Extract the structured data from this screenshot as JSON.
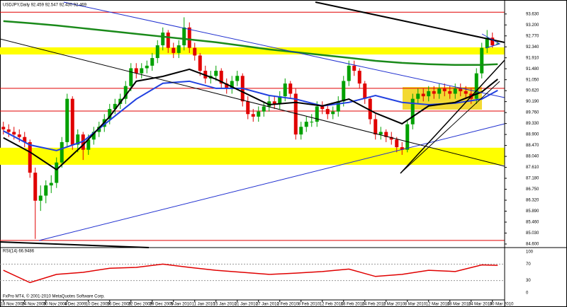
{
  "chart_data": {
    "type": "candlestick",
    "title": "USDJPY,Daily 92.459 92.547 92.430 92.469",
    "footer": "FxPro MT4, © 2001-2010 MetaQuotes Software Corp.",
    "bull_color": "#00a000",
    "bear_color": "#e00000",
    "ylim": [
      84.46,
      94.04
    ],
    "yticks": [
      {
        "value": 84.6,
        "label": "84.600"
      },
      {
        "value": 85.03,
        "label": "85.030"
      },
      {
        "value": 85.46,
        "label": "85.460"
      },
      {
        "value": 85.89,
        "label": "85.890"
      },
      {
        "value": 86.32,
        "label": "86.320"
      },
      {
        "value": 86.75,
        "label": "86.750"
      },
      {
        "value": 87.18,
        "label": "87.180"
      },
      {
        "value": 87.61,
        "label": "87.610"
      },
      {
        "value": 88.04,
        "label": "88.040"
      },
      {
        "value": 88.47,
        "label": "88.470"
      },
      {
        "value": 88.9,
        "label": "88.900"
      },
      {
        "value": 89.33,
        "label": "89.330"
      },
      {
        "value": 89.76,
        "label": "89.760"
      },
      {
        "value": 90.19,
        "label": "90.190"
      },
      {
        "value": 90.62,
        "label": "90.620"
      },
      {
        "value": 91.05,
        "label": "91.050"
      },
      {
        "value": 91.48,
        "label": "91.480"
      },
      {
        "value": 91.91,
        "label": "91.910"
      },
      {
        "value": 92.34,
        "label": "92.340"
      },
      {
        "value": 92.77,
        "label": "92.770"
      },
      {
        "value": 93.2,
        "label": "93.200"
      },
      {
        "value": 93.63,
        "label": "93.630"
      }
    ],
    "x_labels": [
      "18 Nov 2009",
      "24 Nov 2009",
      "30 Nov 2009",
      "4 Dec 2009",
      "10 Dec 2009",
      "16 Dec 2009",
      "22 Dec 2009",
      "29 Dec 2009",
      "5 Jan 2010",
      "11 Jan 2010",
      "15 Jan 2010",
      "21 Jan 2010",
      "27 Jan 2010",
      "2 Feb 2010",
      "8 Feb 2010",
      "12 Feb 2010",
      "18 Feb 2010",
      "24 Feb 2010",
      "2 Mar 2010",
      "8 Mar 2010",
      "12 Mar 2010",
      "18 Mar 2010",
      "24 Mar 2010",
      "30 Mar 2010"
    ],
    "ohlc": [
      [
        89.2,
        89.4,
        88.9,
        89.1
      ],
      [
        89.1,
        89.3,
        88.8,
        89.0
      ],
      [
        89.0,
        89.2,
        88.7,
        88.9
      ],
      [
        88.9,
        89.1,
        88.6,
        88.8
      ],
      [
        88.8,
        89.0,
        88.4,
        88.6
      ],
      [
        88.6,
        88.7,
        87.2,
        87.4
      ],
      [
        87.4,
        87.6,
        84.8,
        86.3
      ],
      [
        86.3,
        86.9,
        85.9,
        86.5
      ],
      [
        86.5,
        87.1,
        86.2,
        86.9
      ],
      [
        86.9,
        87.3,
        86.6,
        87.0
      ],
      [
        87.0,
        88.0,
        86.8,
        87.8
      ],
      [
        87.8,
        88.8,
        87.6,
        88.6
      ],
      [
        88.6,
        90.5,
        88.4,
        90.3
      ],
      [
        90.3,
        90.4,
        88.3,
        88.5
      ],
      [
        88.5,
        89.1,
        88.2,
        88.9
      ],
      [
        88.9,
        89.0,
        87.9,
        88.3
      ],
      [
        88.3,
        88.9,
        88.1,
        88.7
      ],
      [
        88.7,
        89.2,
        88.5,
        89.0
      ],
      [
        89.0,
        89.4,
        88.8,
        89.2
      ],
      [
        89.2,
        89.7,
        89.0,
        89.5
      ],
      [
        89.5,
        90.1,
        89.3,
        89.9
      ],
      [
        89.9,
        90.3,
        89.7,
        90.1
      ],
      [
        90.1,
        90.5,
        89.9,
        90.3
      ],
      [
        90.3,
        91.0,
        90.1,
        90.8
      ],
      [
        90.8,
        91.7,
        90.6,
        91.5
      ],
      [
        91.5,
        91.7,
        91.1,
        91.3
      ],
      [
        91.3,
        91.7,
        91.1,
        91.5
      ],
      [
        91.5,
        91.8,
        91.3,
        91.6
      ],
      [
        91.6,
        92.1,
        91.4,
        91.9
      ],
      [
        91.9,
        92.6,
        91.7,
        92.4
      ],
      [
        92.4,
        93.1,
        92.2,
        92.9
      ],
      [
        92.9,
        93.0,
        92.1,
        92.3
      ],
      [
        92.3,
        92.5,
        91.9,
        92.1
      ],
      [
        92.1,
        92.6,
        91.9,
        92.4
      ],
      [
        92.4,
        93.5,
        92.2,
        93.1
      ],
      [
        93.1,
        93.3,
        92.1,
        92.3
      ],
      [
        92.3,
        92.5,
        91.8,
        92.0
      ],
      [
        92.0,
        92.1,
        91.2,
        91.4
      ],
      [
        91.4,
        91.6,
        90.9,
        91.1
      ],
      [
        91.1,
        91.4,
        90.9,
        91.2
      ],
      [
        91.2,
        91.6,
        91.0,
        91.4
      ],
      [
        91.4,
        91.5,
        90.7,
        90.9
      ],
      [
        90.9,
        91.1,
        90.5,
        90.7
      ],
      [
        90.7,
        91.2,
        90.5,
        91.0
      ],
      [
        91.0,
        91.4,
        90.8,
        91.2
      ],
      [
        91.2,
        91.3,
        90.0,
        90.2
      ],
      [
        90.2,
        90.4,
        89.5,
        89.7
      ],
      [
        89.7,
        89.9,
        89.4,
        89.6
      ],
      [
        89.6,
        90.0,
        89.4,
        89.8
      ],
      [
        89.8,
        90.2,
        89.6,
        90.0
      ],
      [
        90.0,
        90.4,
        89.8,
        90.2
      ],
      [
        90.2,
        90.4,
        89.9,
        90.1
      ],
      [
        90.1,
        90.6,
        89.9,
        90.4
      ],
      [
        90.4,
        91.1,
        90.2,
        90.9
      ],
      [
        90.9,
        91.0,
        90.3,
        90.5
      ],
      [
        90.5,
        90.7,
        88.7,
        88.9
      ],
      [
        88.9,
        89.4,
        88.7,
        89.2
      ],
      [
        89.2,
        89.6,
        89.0,
        89.4
      ],
      [
        89.4,
        89.7,
        89.2,
        89.4
      ],
      [
        89.4,
        90.2,
        89.2,
        90.0
      ],
      [
        90.0,
        90.2,
        89.7,
        89.9
      ],
      [
        89.9,
        90.1,
        89.5,
        89.7
      ],
      [
        89.7,
        90.0,
        89.5,
        89.8
      ],
      [
        89.8,
        90.4,
        89.6,
        90.2
      ],
      [
        90.2,
        91.2,
        90.0,
        91.0
      ],
      [
        91.0,
        91.8,
        90.8,
        91.6
      ],
      [
        91.6,
        91.8,
        91.2,
        91.4
      ],
      [
        91.4,
        91.5,
        90.7,
        90.9
      ],
      [
        90.9,
        91.0,
        90.1,
        90.3
      ],
      [
        90.3,
        90.4,
        89.3,
        89.5
      ],
      [
        89.5,
        89.7,
        88.7,
        88.9
      ],
      [
        88.9,
        89.2,
        88.7,
        89.0
      ],
      [
        89.0,
        89.1,
        88.6,
        88.8
      ],
      [
        88.8,
        89.0,
        88.5,
        88.7
      ],
      [
        88.7,
        88.8,
        88.2,
        88.4
      ],
      [
        88.4,
        88.6,
        88.1,
        88.3
      ],
      [
        88.3,
        89.5,
        88.2,
        89.3
      ],
      [
        89.3,
        90.5,
        89.1,
        90.3
      ],
      [
        90.3,
        90.7,
        90.1,
        90.5
      ],
      [
        90.5,
        90.7,
        90.2,
        90.4
      ],
      [
        90.4,
        90.8,
        90.2,
        90.6
      ],
      [
        90.6,
        90.8,
        90.3,
        90.5
      ],
      [
        90.5,
        90.9,
        90.3,
        90.7
      ],
      [
        90.7,
        90.9,
        90.4,
        90.6
      ],
      [
        90.6,
        90.8,
        90.3,
        90.5
      ],
      [
        90.5,
        90.9,
        90.3,
        90.7
      ],
      [
        90.7,
        90.9,
        90.4,
        90.6
      ],
      [
        90.6,
        90.8,
        90.3,
        90.5
      ],
      [
        90.5,
        90.7,
        90.1,
        90.3
      ],
      [
        90.3,
        91.5,
        90.1,
        91.3
      ],
      [
        91.3,
        92.5,
        91.1,
        92.3
      ],
      [
        92.3,
        93.0,
        92.1,
        92.7
      ],
      [
        92.7,
        92.9,
        92.3,
        92.4
      ],
      [
        92.459,
        92.547,
        92.43,
        92.469
      ]
    ],
    "lines": [
      {
        "color": "#1a8a1a",
        "width": 2.5,
        "x": [
          0,
          5,
          10,
          15,
          20,
          25,
          30,
          35,
          40,
          45,
          50,
          55,
          60,
          65,
          70,
          75,
          80,
          85,
          90,
          93
        ],
        "values": [
          93.35,
          93.27,
          93.18,
          93.07,
          92.96,
          92.85,
          92.74,
          92.63,
          92.52,
          92.38,
          92.24,
          92.13,
          92.02,
          91.91,
          91.79,
          91.71,
          91.66,
          91.63,
          91.63,
          91.66
        ]
      },
      {
        "color": "#2040e0",
        "width": 2,
        "x": [
          0,
          5,
          10,
          15,
          20,
          25,
          30,
          35,
          40,
          45,
          50,
          55,
          60,
          65,
          70,
          75,
          80,
          85,
          90,
          93
        ],
        "values": [
          89.04,
          88.49,
          88.27,
          88.63,
          89.46,
          90.29,
          90.91,
          90.99,
          90.71,
          90.71,
          90.43,
          90.29,
          90.02,
          90.16,
          90.43,
          90.16,
          90.07,
          90.13,
          90.29,
          90.63
        ]
      },
      {
        "color": "#000000",
        "width": 2,
        "x": [
          0,
          5,
          10,
          15,
          20,
          25,
          30,
          35,
          40,
          45,
          50,
          55,
          60,
          65,
          70,
          75,
          80,
          85,
          90,
          93
        ],
        "values": [
          88.77,
          88.21,
          87.52,
          88.49,
          89.6,
          90.99,
          91.18,
          91.46,
          91.07,
          90.57,
          90.07,
          90.16,
          90.02,
          90.29,
          89.74,
          89.32,
          90.02,
          90.16,
          90.57,
          91.07
        ]
      }
    ],
    "levels": {
      "color": "#e00000",
      "values": [
        93.7,
        90.71,
        89.82,
        84.74
      ]
    },
    "zones": [
      {
        "color": "#ffff00",
        "range": [
          92.04,
          92.32
        ]
      },
      {
        "color": "#ffff00",
        "range": [
          87.71,
          88.38
        ]
      }
    ],
    "rsi": {
      "label": "RSI(14) 66.9486",
      "color": "#e00000",
      "ylim": [
        0,
        100
      ],
      "yticks": [
        0,
        30,
        70,
        100
      ],
      "x": [
        0,
        5,
        10,
        15,
        20,
        25,
        30,
        35,
        40,
        45,
        50,
        55,
        60,
        65,
        70,
        75,
        80,
        85,
        90,
        93
      ],
      "values": [
        55,
        25,
        45,
        50,
        60,
        62,
        70,
        62,
        55,
        50,
        45,
        48,
        52,
        58,
        40,
        45,
        55,
        52,
        68,
        66.9486
      ]
    }
  }
}
